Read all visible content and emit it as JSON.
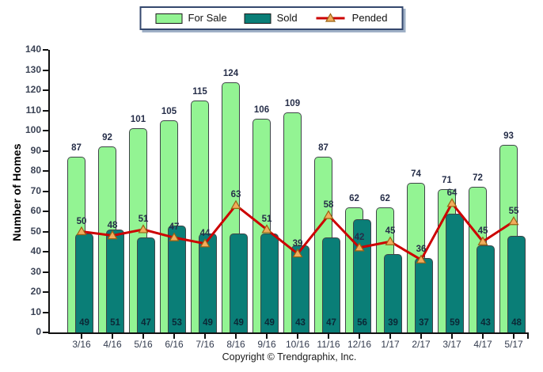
{
  "legend": {
    "items": [
      {
        "label": "For Sale"
      },
      {
        "label": "Sold"
      },
      {
        "label": "Pended"
      }
    ]
  },
  "chart_data": {
    "type": "bar",
    "subtype": "overlapped bars with line overlay",
    "categories": [
      "3/16",
      "4/16",
      "5/16",
      "6/16",
      "7/16",
      "8/16",
      "9/16",
      "10/16",
      "11/16",
      "12/16",
      "1/17",
      "2/17",
      "3/17",
      "4/17",
      "5/17"
    ],
    "series": [
      {
        "name": "For Sale",
        "type": "bar",
        "color": "#93F493",
        "border_color": "#3F4448",
        "values": [
          87,
          92,
          101,
          105,
          115,
          124,
          106,
          109,
          87,
          62,
          62,
          74,
          71,
          72,
          93
        ]
      },
      {
        "name": "Sold",
        "type": "bar",
        "color": "#0A7E77",
        "border_color": "#3F4448",
        "values": [
          49,
          51,
          47,
          53,
          49,
          49,
          49,
          43,
          47,
          56,
          39,
          37,
          59,
          43,
          48
        ]
      },
      {
        "name": "Pended",
        "type": "line",
        "color": "#CC0000",
        "marker": "triangle-up",
        "marker_fill": "#F2AC5C",
        "marker_stroke": "#9A6212",
        "values": [
          50,
          48,
          51,
          47,
          44,
          63,
          51,
          39,
          58,
          42,
          45,
          36,
          64,
          45,
          55
        ]
      }
    ],
    "title": "",
    "xlabel": "",
    "ylabel": "Number of Homes",
    "ylim": [
      0,
      140
    ],
    "ytick_step": 10,
    "grid": false,
    "legend_position": "top-center"
  },
  "footer": {
    "text": "Copyright © Trendgraphix, Inc."
  }
}
